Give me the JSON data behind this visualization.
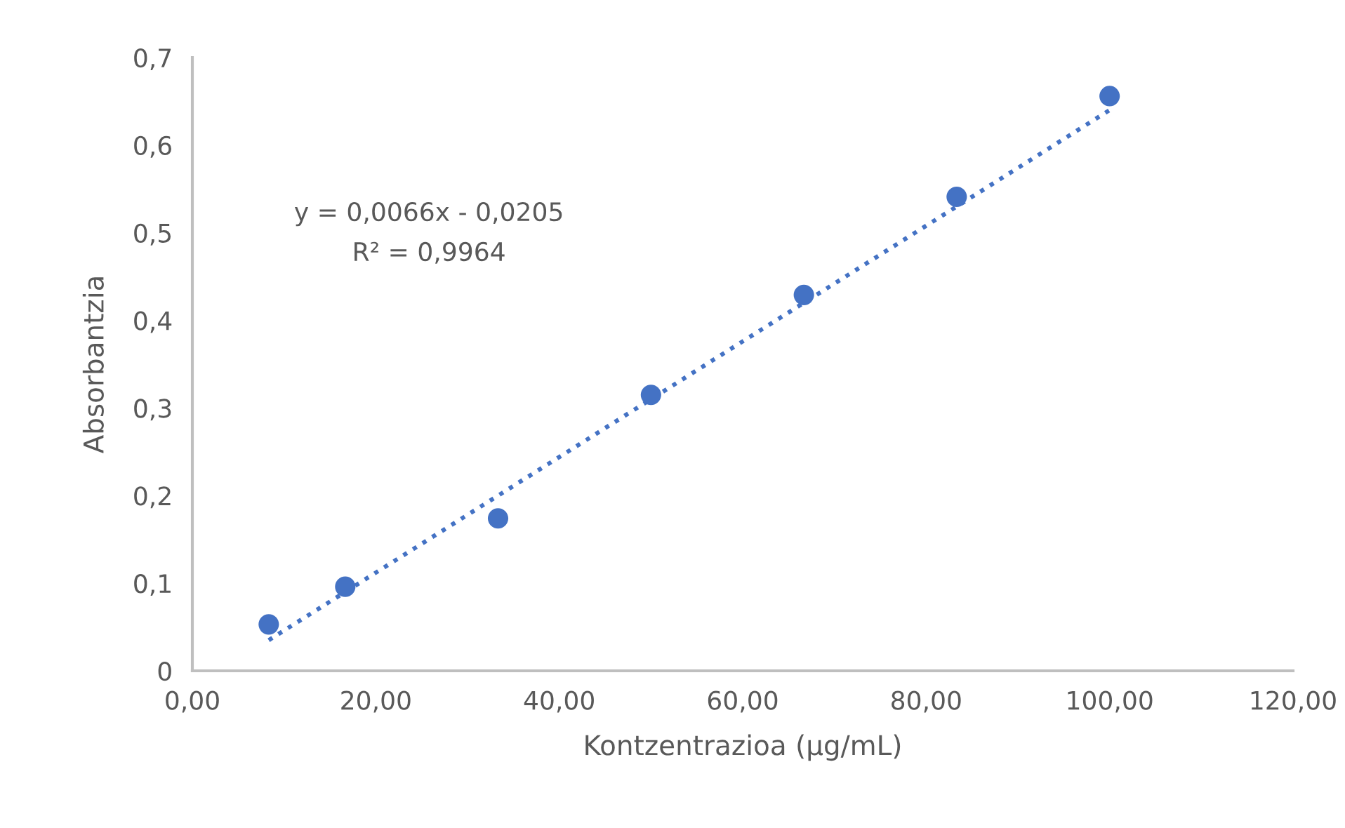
{
  "chart_data": {
    "type": "scatter",
    "xlabel": "Kontzentrazioa (µg/mL)",
    "ylabel": "Absorbantzia",
    "xlim": [
      0,
      120
    ],
    "ylim": [
      0,
      0.7
    ],
    "xticks": [
      {
        "value": 0,
        "label": "0,00"
      },
      {
        "value": 20,
        "label": "20,00"
      },
      {
        "value": 40,
        "label": "40,00"
      },
      {
        "value": 60,
        "label": "60,00"
      },
      {
        "value": 80,
        "label": "80,00"
      },
      {
        "value": 100,
        "label": "100,00"
      },
      {
        "value": 120,
        "label": "120,00"
      }
    ],
    "yticks": [
      0,
      {
        "value": 0.1,
        "label": "0,1"
      },
      {
        "value": 0.2,
        "label": "0,2"
      },
      {
        "value": 0.3,
        "label": "0,3"
      },
      {
        "value": 0.4,
        "label": "0,4"
      },
      {
        "value": 0.5,
        "label": "0,5"
      },
      {
        "value": 0.6,
        "label": "0,6"
      },
      {
        "value": 0.7,
        "label": "0,7"
      }
    ],
    "grid": false,
    "series": [
      {
        "marker": "circle",
        "color": "#4472c4",
        "x": [
          8.33,
          16.67,
          33.33,
          50,
          66.67,
          83.33,
          100
        ],
        "values": [
          0.053,
          0.096,
          0.174,
          0.315,
          0.429,
          0.541,
          0.656
        ]
      },
      {
        "type": "line",
        "marker": "none",
        "color": "#4472c4",
        "line_style": "dotted",
        "x": [
          8.33,
          100
        ],
        "values": [
          0.035,
          0.64
        ]
      }
    ],
    "annotations": [
      "y = 0,0066x - 0,0205",
      "R² = 0,9964"
    ]
  }
}
